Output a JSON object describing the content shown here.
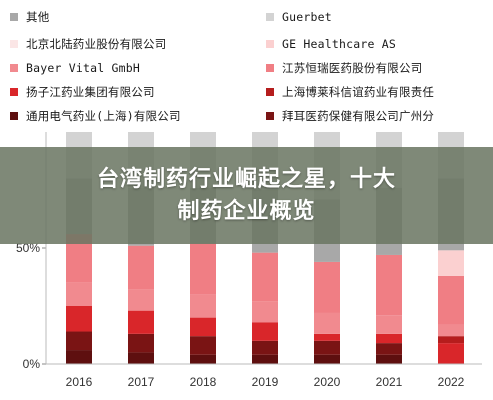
{
  "banner": {
    "line1": "台湾制药行业崛起之星，十大",
    "line2": "制药企业概览"
  },
  "chart_data": {
    "type": "bar",
    "stacked": true,
    "title": "",
    "xlabel": "",
    "ylabel": "",
    "categories": [
      "2016",
      "2017",
      "2018",
      "2019",
      "2020",
      "2021",
      "2022"
    ],
    "y_ticks": [
      "0%",
      "50%"
    ],
    "ylim": [
      0,
      100
    ],
    "legend_position": "top",
    "series": [
      {
        "name": "通用电气药业(上海)有限公司",
        "color": "#5e0f0f",
        "values": [
          6,
          5,
          4,
          4,
          4,
          4,
          0
        ]
      },
      {
        "name": "拜耳医药保健有限公司广州分",
        "color": "#7a1414",
        "values": [
          8,
          8,
          8,
          6,
          6,
          5,
          0
        ]
      },
      {
        "name": "扬子江药业集团有限公司",
        "color": "#d9262a",
        "values": [
          11,
          10,
          8,
          8,
          3,
          4,
          9
        ]
      },
      {
        "name": "上海博莱科信谊药业有限责任",
        "color": "#b51d1d",
        "values": [
          0,
          0,
          0,
          0,
          0,
          0,
          3
        ]
      },
      {
        "name": "Bayer Vital GmbH",
        "color": "#f18a8f",
        "values": [
          10,
          9,
          10,
          9,
          9,
          8,
          5
        ]
      },
      {
        "name": "江苏恒瑞医药股份有限公司",
        "color": "#f07e84",
        "values": [
          21,
          19,
          22,
          21,
          22,
          26,
          21
        ]
      },
      {
        "name": "北京北陆药业股份有限公司",
        "color": "#fbe6e6",
        "values": [
          0,
          0,
          0,
          0,
          0,
          0,
          0
        ]
      },
      {
        "name": "GE Healthcare AS",
        "color": "#fbd0d0",
        "values": [
          0,
          0,
          0,
          0,
          0,
          0,
          11
        ]
      },
      {
        "name": "其他",
        "color": "#a8a8a8",
        "values": [
          24,
          25,
          24,
          27,
          27,
          29,
          31
        ]
      },
      {
        "name": "Guerbet",
        "color": "#d3d3d3",
        "values": [
          20,
          24,
          24,
          25,
          29,
          24,
          20
        ]
      }
    ]
  },
  "legend": [
    {
      "label": "其他",
      "color": "#a8a8a8"
    },
    {
      "label": "Guerbet",
      "color": "#d3d3d3"
    },
    {
      "label": "北京北陆药业股份有限公司",
      "color": "#fbe6e6"
    },
    {
      "label": "GE Healthcare AS",
      "color": "#fbd0d0"
    },
    {
      "label": "Bayer Vital GmbH",
      "color": "#f18a8f"
    },
    {
      "label": "江苏恒瑞医药股份有限公司",
      "color": "#f07e84"
    },
    {
      "label": "扬子江药业集团有限公司",
      "color": "#d9262a"
    },
    {
      "label": "上海博莱科信谊药业有限责任",
      "color": "#b51d1d"
    },
    {
      "label": "通用电气药业(上海)有限公司",
      "color": "#5e0f0f"
    },
    {
      "label": "拜耳医药保健有限公司广州分",
      "color": "#7a1414"
    }
  ]
}
